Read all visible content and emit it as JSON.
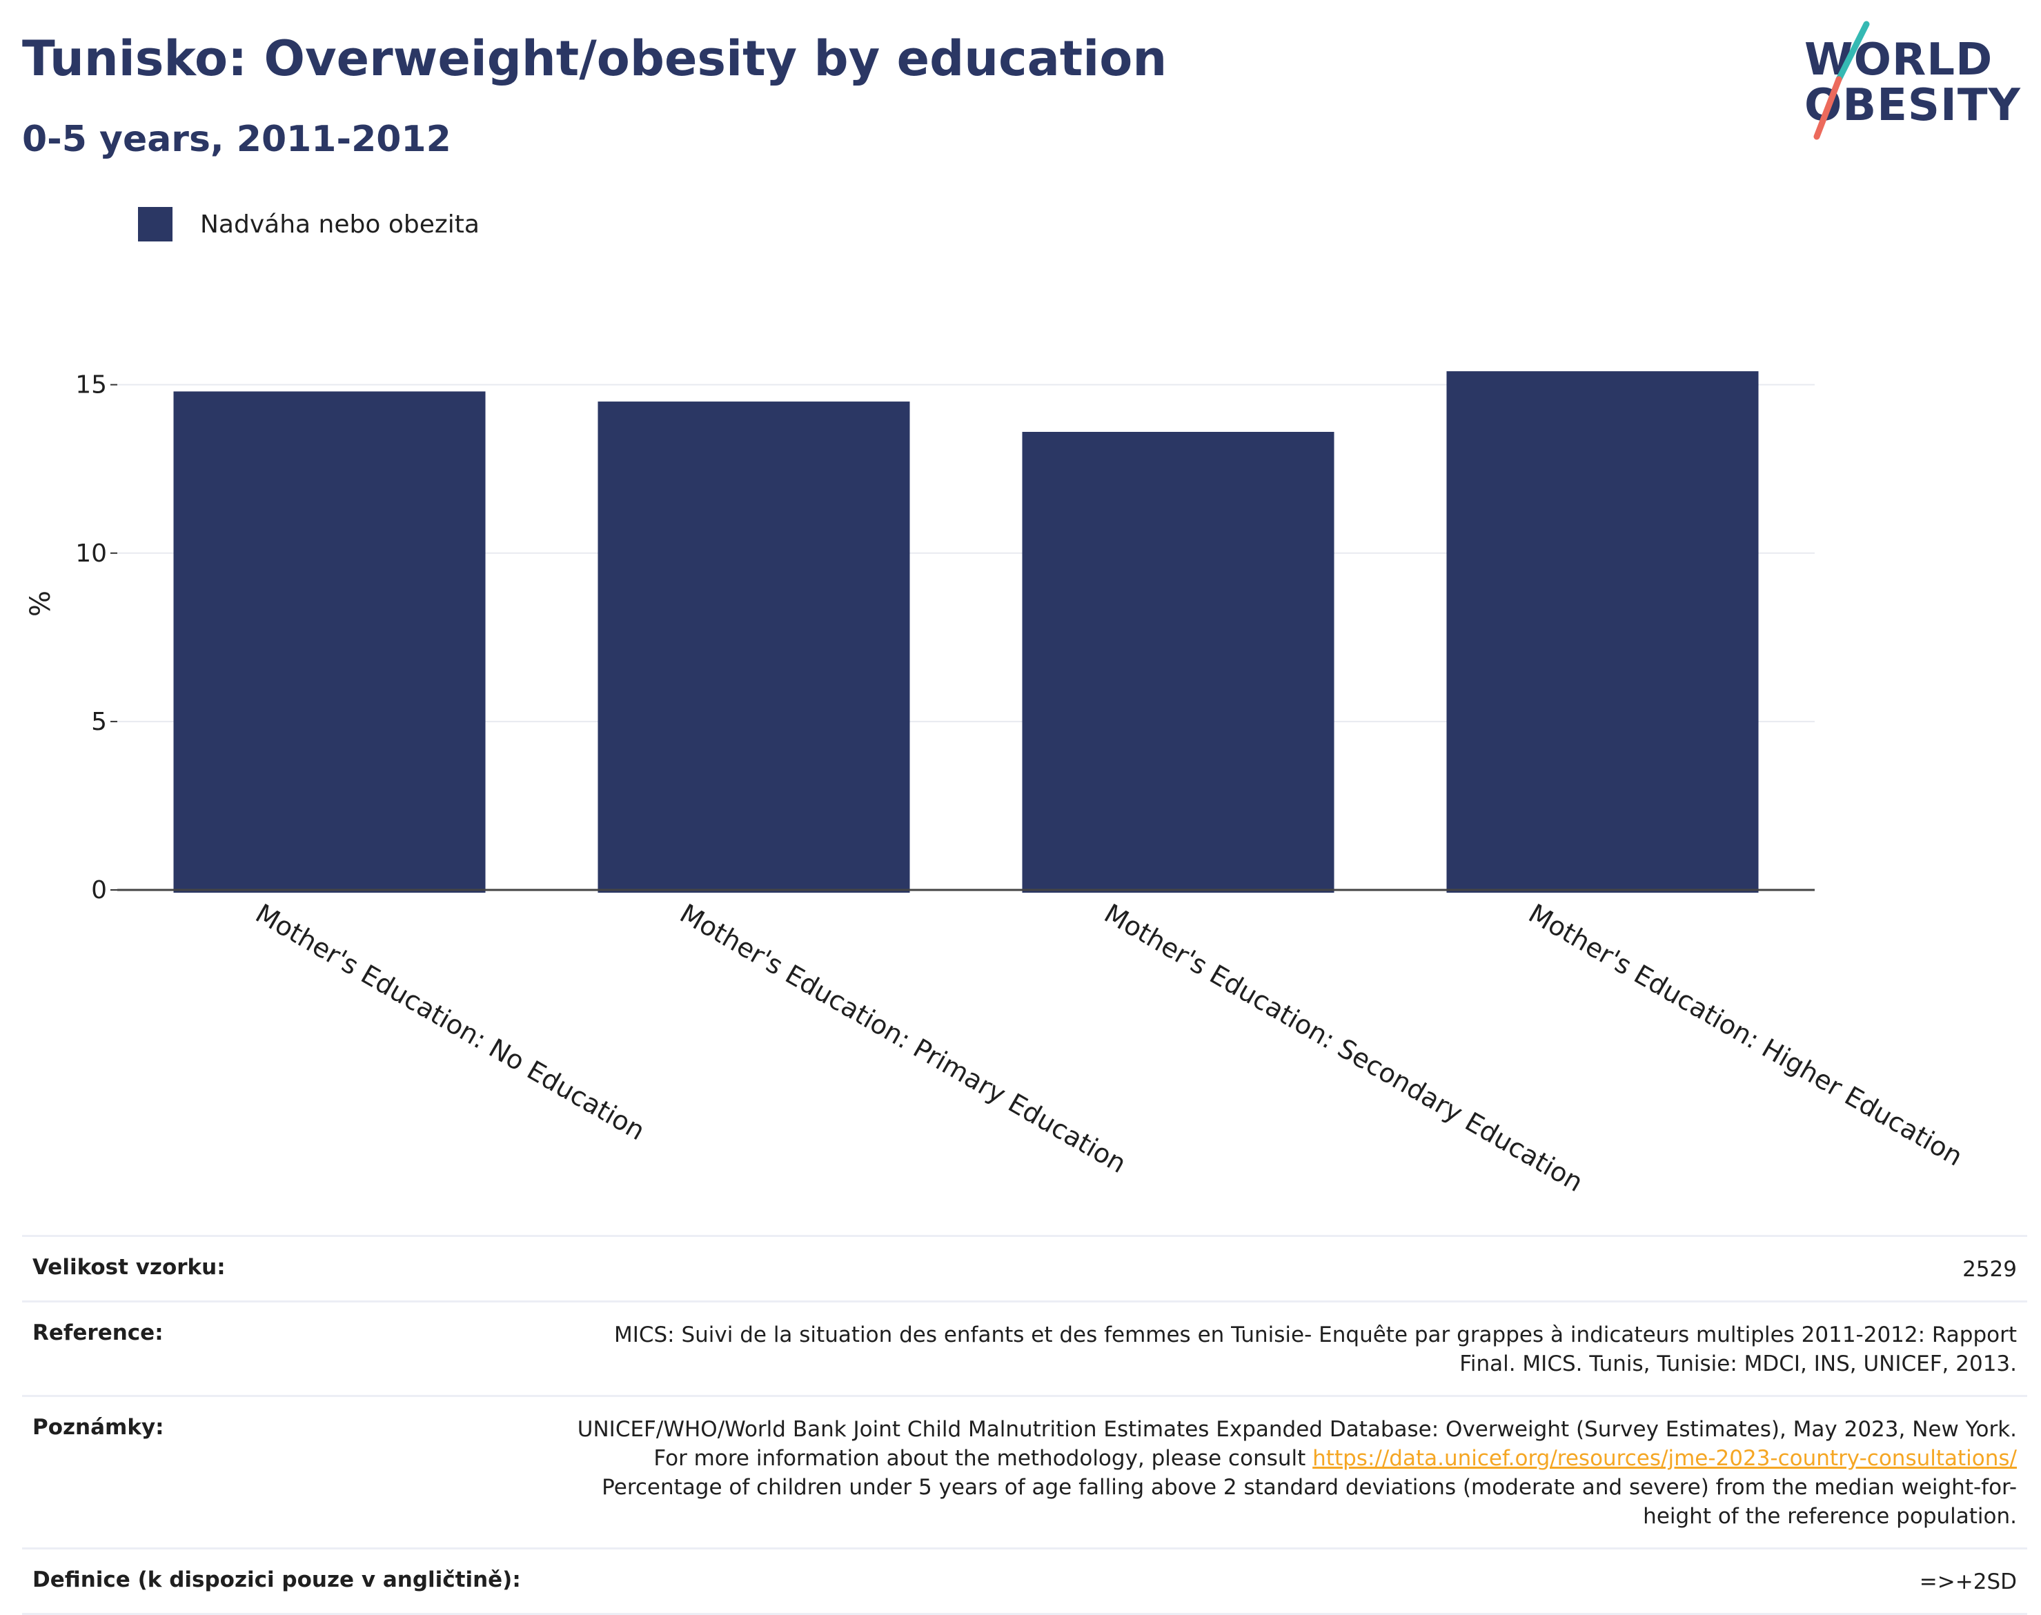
{
  "header": {
    "title": "Tunisko: Overweight/obesity by education",
    "subtitle": "0-5 years, 2011-2012"
  },
  "logo": {
    "line1": "WORLD",
    "line2": "OBESITY",
    "colors": {
      "text": "#2b3764",
      "slash_top": "#35b9b3",
      "slash_bottom": "#ec6a5c"
    }
  },
  "legend": {
    "label": "Nadváha nebo obezita",
    "color": "#2b3764"
  },
  "chart_data": {
    "type": "bar",
    "categories": [
      "Mother's Education: No Education",
      "Mother's Education: Primary Education",
      "Mother's Education: Secondary Education",
      "Mother's Education: Higher Education"
    ],
    "series": [
      {
        "name": "Nadváha nebo obezita",
        "values": [
          14.8,
          14.5,
          13.6,
          15.4
        ],
        "color": "#2b3764"
      }
    ],
    "ylabel": "%",
    "xlabel": "",
    "ylim": [
      0,
      17
    ],
    "yticks": [
      0,
      5,
      10,
      15
    ],
    "grid": true,
    "legend_position": "top-left"
  },
  "info_table": {
    "sample_size": {
      "label": "Velikost vzorku:",
      "value": "2529"
    },
    "reference": {
      "label": "Reference:",
      "value": "MICS: Suivi de la situation des enfants et des femmes en Tunisie- Enquête par grappes à indicateurs multiples 2011-2012: Rapport Final. MICS. Tunis, Tunisie: MDCI, INS, UNICEF, 2013."
    },
    "notes": {
      "label": "Poznámky:",
      "text_before_link": "UNICEF/WHO/World Bank Joint Child Malnutrition Estimates Expanded Database: Overweight (Survey Estimates), May 2023, New York. For more information about the methodology, please consult",
      "link": "https://data.unicef.org/resources/jme-2023-country-consultations/",
      "text_after_link": "Percentage of children under 5 years of age falling above 2 standard deviations (moderate and severe) from the median weight-for-height of the reference population."
    },
    "definition": {
      "label": "Definice (k dispozici pouze v angličtině):",
      "value": "=>+2SD"
    }
  }
}
